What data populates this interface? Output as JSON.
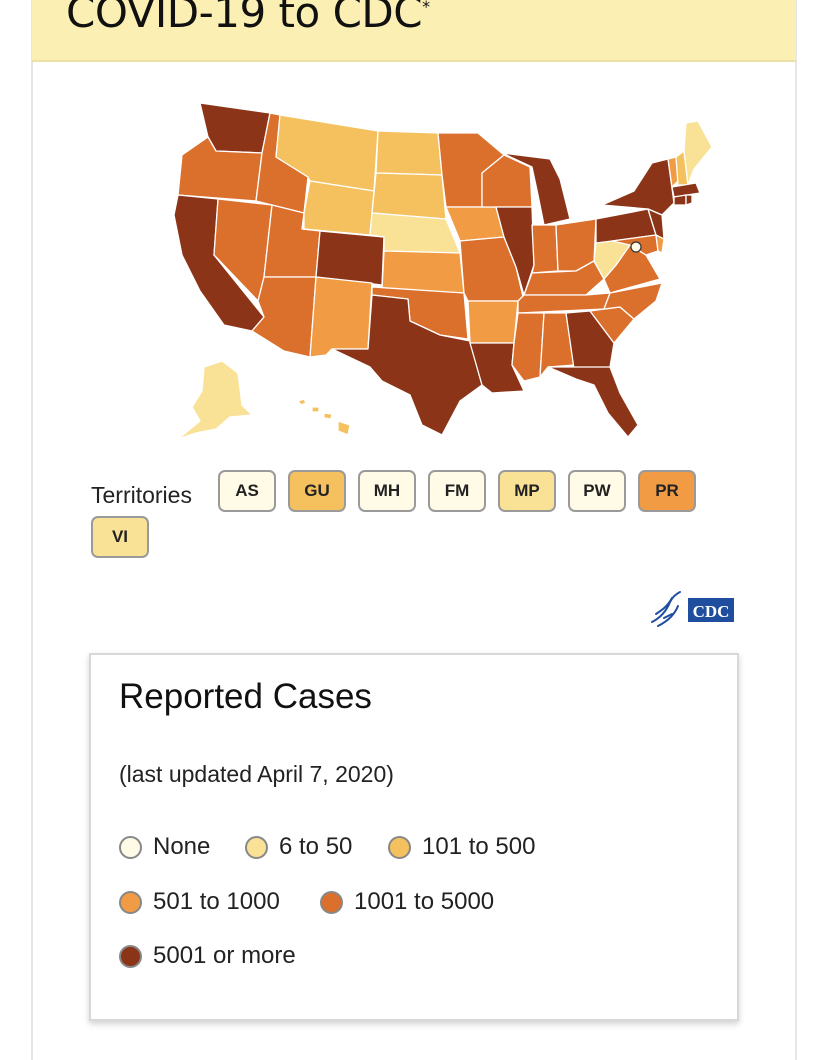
{
  "header": {
    "title": "COVID-19 to CDC"
  },
  "map": {
    "territories_label": "Territories",
    "territories": [
      {
        "code": "AS",
        "color": "#fffbe6"
      },
      {
        "code": "GU",
        "color": "#f4c15e"
      },
      {
        "code": "MH",
        "color": "#fffbe6"
      },
      {
        "code": "FM",
        "color": "#fffbe6"
      },
      {
        "code": "MP",
        "color": "#f9e196"
      },
      {
        "code": "PW",
        "color": "#fffbe6"
      },
      {
        "code": "PR",
        "color": "#f19b45"
      },
      {
        "code": "VI",
        "color": "#f9e196"
      }
    ],
    "logo": {
      "icon": "hhs-eagle-icon",
      "text": "CDC"
    }
  },
  "legend": {
    "title": "Reported Cases",
    "subtitle": "(last updated April 7, 2020)",
    "items": [
      {
        "label": "None",
        "color": "#fffbe6"
      },
      {
        "label": "6 to 50",
        "color": "#f9e196"
      },
      {
        "label": "101 to 500",
        "color": "#f4c15e"
      },
      {
        "label": "501 to 1000",
        "color": "#f19b45"
      },
      {
        "label": "1001 to 5000",
        "color": "#db6f2c"
      },
      {
        "label": "5001 or more",
        "color": "#8c3417"
      }
    ]
  }
}
